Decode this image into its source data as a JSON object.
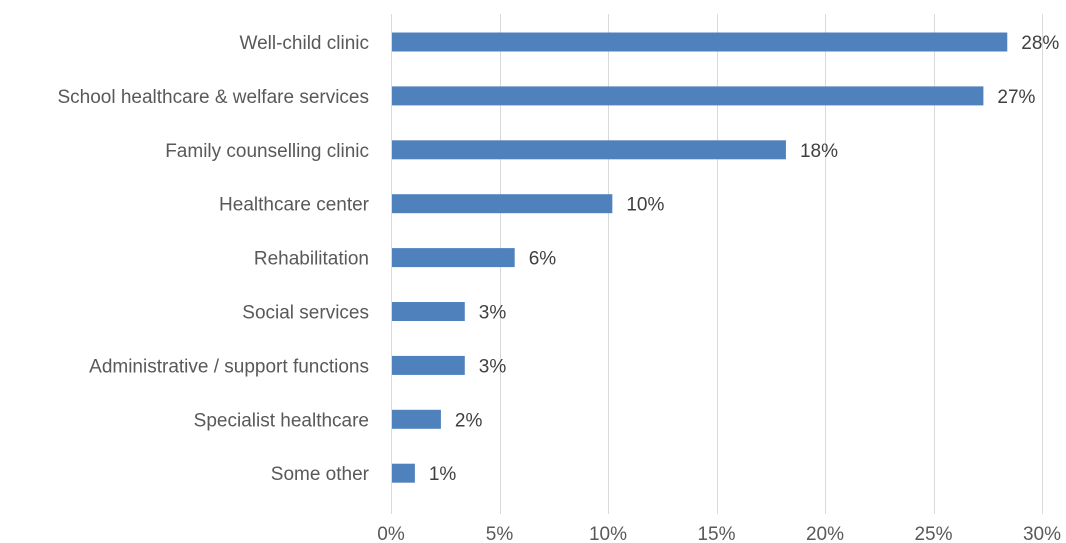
{
  "chart_data": {
    "type": "bar",
    "orientation": "horizontal",
    "categories": [
      "Well-child clinic",
      "School healthcare & welfare services",
      "Family counselling clinic",
      "Healthcare center",
      "Rehabilitation",
      "Social services",
      "Administrative / support functions",
      "Specialist healthcare",
      "Some other"
    ],
    "values": [
      28.4,
      27.3,
      18.2,
      10.2,
      5.7,
      3.4,
      3.4,
      2.3,
      1.1
    ],
    "data_labels": [
      "28%",
      "27%",
      "18%",
      "10%",
      "6%",
      "3%",
      "3%",
      "2%",
      "1%"
    ],
    "x_ticks": [
      0,
      5,
      10,
      15,
      20,
      25,
      30
    ],
    "x_tick_labels": [
      "0%",
      "5%",
      "10%",
      "15%",
      "20%",
      "25%",
      "30%"
    ],
    "xlim": [
      0,
      30
    ],
    "title": "",
    "xlabel": "",
    "ylabel": "",
    "grid": "vertical",
    "legend": "none",
    "bar_color": "#4f81bd"
  }
}
